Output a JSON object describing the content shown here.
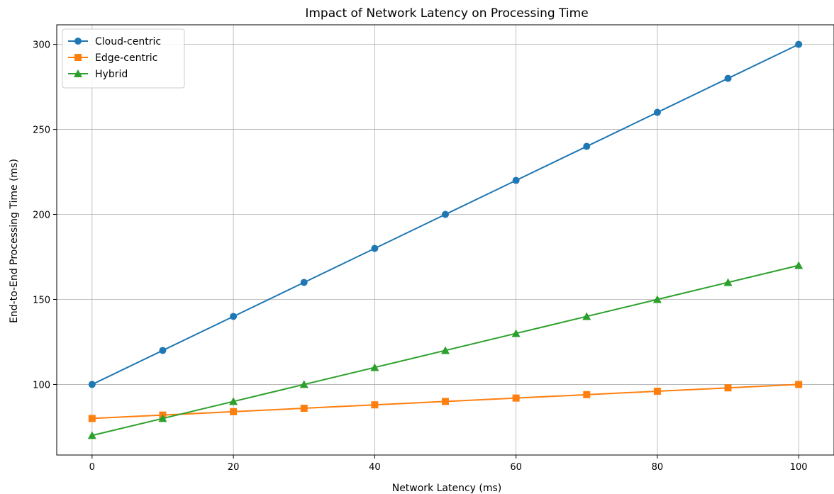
{
  "chart_data": {
    "type": "line",
    "title": "Impact of Network Latency on Processing Time",
    "xlabel": "Network Latency (ms)",
    "ylabel": "End-to-End Processing Time (ms)",
    "x": [
      0,
      10,
      20,
      30,
      40,
      50,
      60,
      70,
      80,
      90,
      100
    ],
    "xlim": [
      -5,
      105
    ],
    "ylim": [
      58.5,
      311.5
    ],
    "xticks": [
      0,
      20,
      40,
      60,
      80,
      100
    ],
    "yticks": [
      100,
      150,
      200,
      250,
      300
    ],
    "grid": true,
    "legend_position": "top-left",
    "series": [
      {
        "name": "Cloud-centric",
        "marker": "circle",
        "color": "#1f77b4",
        "values": [
          100,
          120,
          140,
          160,
          180,
          200,
          220,
          240,
          260,
          280,
          300
        ]
      },
      {
        "name": "Edge-centric",
        "marker": "square",
        "color": "#ff7f0e",
        "values": [
          80,
          82,
          84,
          86,
          88,
          90,
          92,
          94,
          96,
          98,
          100
        ]
      },
      {
        "name": "Hybrid",
        "marker": "triangle",
        "color": "#2ca02c",
        "values": [
          70,
          80,
          90,
          100,
          110,
          120,
          130,
          140,
          150,
          160,
          170
        ]
      }
    ]
  }
}
